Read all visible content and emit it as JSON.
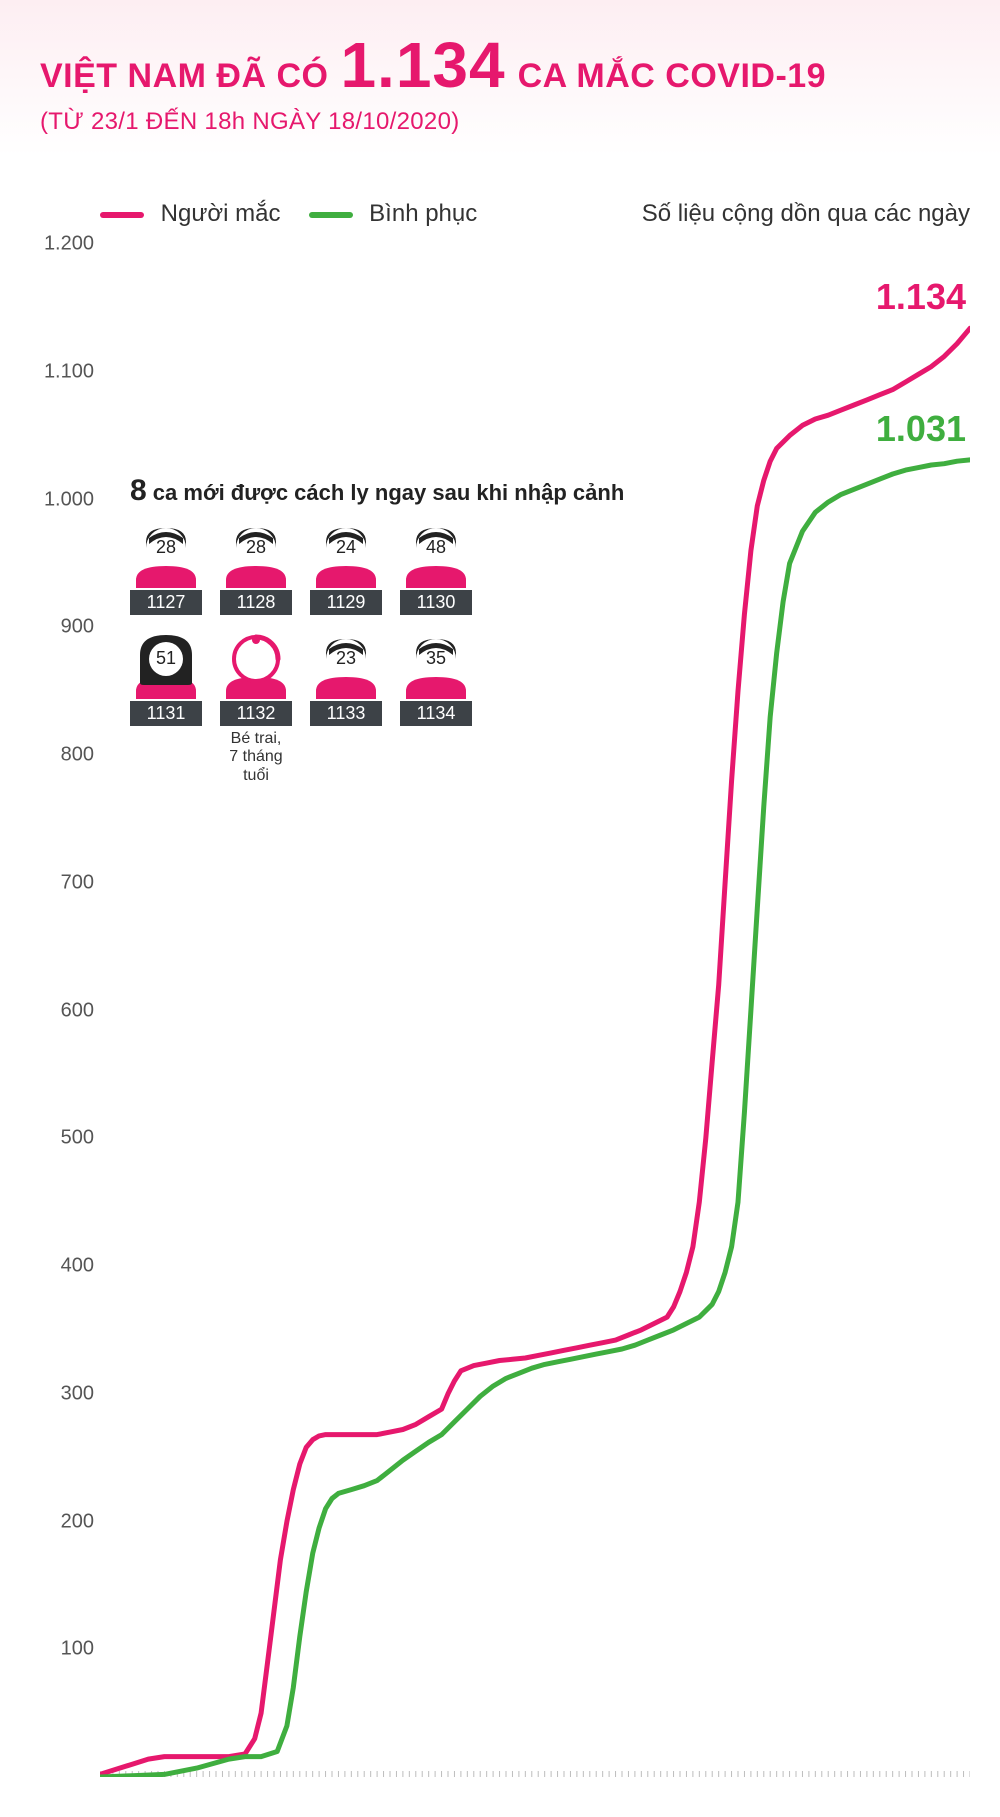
{
  "header": {
    "title_pre": "VIỆT NAM ĐÃ CÓ",
    "title_number": "1.134",
    "title_post": "CA MẮC COVID-19",
    "subtitle": "(TỪ 23/1 ĐẾN 18h NGÀY 18/10/2020)"
  },
  "legend": {
    "cases_label": "Người mắc",
    "recovered_label": "Bình phục",
    "cumulative_label": "Số liệu cộng dồn qua các ngày"
  },
  "end_labels": {
    "cases": "1.134",
    "recovered": "1.031"
  },
  "styling": {
    "accent_pink": "#e6186d",
    "accent_green": "#3fae3f",
    "y_axis_color": "#555555",
    "grid_color": "#e0e0e0",
    "cases_line_width": 5,
    "recovered_line_width": 5,
    "end_label_fontsize": 36,
    "title_number_fontsize": 64,
    "title_text_fontsize": 34,
    "subtitle_fontsize": 24,
    "legend_fontsize": 24,
    "ytick_fontsize": 20,
    "background_color": "#ffffff",
    "header_gradient_top": "#fdeef2",
    "person_shirt_color": "#e6186d",
    "person_hair_color": "#222222",
    "person_face_color": "#ffffff",
    "person_id_bg": "#3d4247",
    "baseline_tick_color": "#bdbdbd"
  },
  "chart": {
    "type": "line",
    "ylim": [
      0,
      1200
    ],
    "yticks": [
      100,
      200,
      300,
      400,
      500,
      600,
      700,
      800,
      900,
      1000,
      1100,
      1200
    ],
    "ytick_labels": [
      "100",
      "200",
      "300",
      "400",
      "500",
      "600",
      "700",
      "800",
      "900",
      "1.000",
      "1.100",
      "1.200"
    ],
    "x_count": 270,
    "series": {
      "cases": {
        "color": "#e6186d",
        "points": [
          [
            0,
            2
          ],
          [
            5,
            6
          ],
          [
            10,
            10
          ],
          [
            15,
            14
          ],
          [
            20,
            16
          ],
          [
            25,
            16
          ],
          [
            30,
            16
          ],
          [
            35,
            16
          ],
          [
            40,
            16
          ],
          [
            45,
            18
          ],
          [
            48,
            30
          ],
          [
            50,
            50
          ],
          [
            52,
            90
          ],
          [
            54,
            130
          ],
          [
            56,
            170
          ],
          [
            58,
            200
          ],
          [
            60,
            225
          ],
          [
            62,
            245
          ],
          [
            64,
            258
          ],
          [
            66,
            264
          ],
          [
            68,
            267
          ],
          [
            70,
            268
          ],
          [
            74,
            268
          ],
          [
            78,
            268
          ],
          [
            82,
            268
          ],
          [
            86,
            268
          ],
          [
            90,
            270
          ],
          [
            94,
            272
          ],
          [
            98,
            276
          ],
          [
            102,
            282
          ],
          [
            106,
            288
          ],
          [
            108,
            300
          ],
          [
            110,
            310
          ],
          [
            112,
            318
          ],
          [
            116,
            322
          ],
          [
            120,
            324
          ],
          [
            124,
            326
          ],
          [
            128,
            327
          ],
          [
            132,
            328
          ],
          [
            136,
            330
          ],
          [
            140,
            332
          ],
          [
            144,
            334
          ],
          [
            148,
            336
          ],
          [
            152,
            338
          ],
          [
            156,
            340
          ],
          [
            160,
            342
          ],
          [
            164,
            346
          ],
          [
            168,
            350
          ],
          [
            172,
            355
          ],
          [
            176,
            360
          ],
          [
            178,
            368
          ],
          [
            180,
            380
          ],
          [
            182,
            395
          ],
          [
            184,
            415
          ],
          [
            186,
            450
          ],
          [
            188,
            500
          ],
          [
            190,
            560
          ],
          [
            192,
            620
          ],
          [
            194,
            700
          ],
          [
            196,
            780
          ],
          [
            198,
            850
          ],
          [
            200,
            910
          ],
          [
            202,
            960
          ],
          [
            204,
            995
          ],
          [
            206,
            1015
          ],
          [
            208,
            1030
          ],
          [
            210,
            1040
          ],
          [
            214,
            1050
          ],
          [
            218,
            1058
          ],
          [
            222,
            1063
          ],
          [
            226,
            1066
          ],
          [
            230,
            1070
          ],
          [
            234,
            1074
          ],
          [
            238,
            1078
          ],
          [
            242,
            1082
          ],
          [
            246,
            1086
          ],
          [
            250,
            1092
          ],
          [
            254,
            1098
          ],
          [
            258,
            1104
          ],
          [
            262,
            1112
          ],
          [
            266,
            1122
          ],
          [
            270,
            1134
          ]
        ]
      },
      "recovered": {
        "color": "#3fae3f",
        "points": [
          [
            0,
            0
          ],
          [
            10,
            1
          ],
          [
            20,
            2
          ],
          [
            30,
            7
          ],
          [
            40,
            14
          ],
          [
            45,
            16
          ],
          [
            50,
            16
          ],
          [
            55,
            20
          ],
          [
            58,
            40
          ],
          [
            60,
            70
          ],
          [
            62,
            110
          ],
          [
            64,
            145
          ],
          [
            66,
            175
          ],
          [
            68,
            195
          ],
          [
            70,
            210
          ],
          [
            72,
            218
          ],
          [
            74,
            222
          ],
          [
            78,
            225
          ],
          [
            82,
            228
          ],
          [
            86,
            232
          ],
          [
            90,
            240
          ],
          [
            94,
            248
          ],
          [
            98,
            255
          ],
          [
            102,
            262
          ],
          [
            106,
            268
          ],
          [
            110,
            278
          ],
          [
            114,
            288
          ],
          [
            118,
            298
          ],
          [
            122,
            306
          ],
          [
            126,
            312
          ],
          [
            130,
            316
          ],
          [
            134,
            320
          ],
          [
            138,
            323
          ],
          [
            142,
            325
          ],
          [
            146,
            327
          ],
          [
            150,
            329
          ],
          [
            154,
            331
          ],
          [
            158,
            333
          ],
          [
            162,
            335
          ],
          [
            166,
            338
          ],
          [
            170,
            342
          ],
          [
            174,
            346
          ],
          [
            178,
            350
          ],
          [
            182,
            355
          ],
          [
            186,
            360
          ],
          [
            188,
            365
          ],
          [
            190,
            370
          ],
          [
            192,
            380
          ],
          [
            194,
            395
          ],
          [
            196,
            415
          ],
          [
            198,
            450
          ],
          [
            200,
            520
          ],
          [
            202,
            600
          ],
          [
            204,
            680
          ],
          [
            206,
            760
          ],
          [
            208,
            830
          ],
          [
            210,
            880
          ],
          [
            212,
            920
          ],
          [
            214,
            950
          ],
          [
            218,
            975
          ],
          [
            222,
            990
          ],
          [
            226,
            998
          ],
          [
            230,
            1004
          ],
          [
            234,
            1008
          ],
          [
            238,
            1012
          ],
          [
            242,
            1016
          ],
          [
            246,
            1020
          ],
          [
            250,
            1023
          ],
          [
            254,
            1025
          ],
          [
            258,
            1027
          ],
          [
            262,
            1028
          ],
          [
            266,
            1030
          ],
          [
            270,
            1031
          ]
        ]
      }
    }
  },
  "info": {
    "count": "8",
    "title_rest": " ca mới được cách ly ngay sau khi nhập cảnh",
    "baby_note_l1": "Bé trai,",
    "baby_note_l2": "7 tháng tuổi",
    "persons": [
      {
        "age": "28",
        "id": "1127",
        "type": "male"
      },
      {
        "age": "28",
        "id": "1128",
        "type": "male"
      },
      {
        "age": "24",
        "id": "1129",
        "type": "male"
      },
      {
        "age": "48",
        "id": "1130",
        "type": "male"
      },
      {
        "age": "51",
        "id": "1131",
        "type": "female"
      },
      {
        "age": "",
        "id": "1132",
        "type": "baby"
      },
      {
        "age": "23",
        "id": "1133",
        "type": "male"
      },
      {
        "age": "35",
        "id": "1134",
        "type": "male"
      }
    ]
  }
}
